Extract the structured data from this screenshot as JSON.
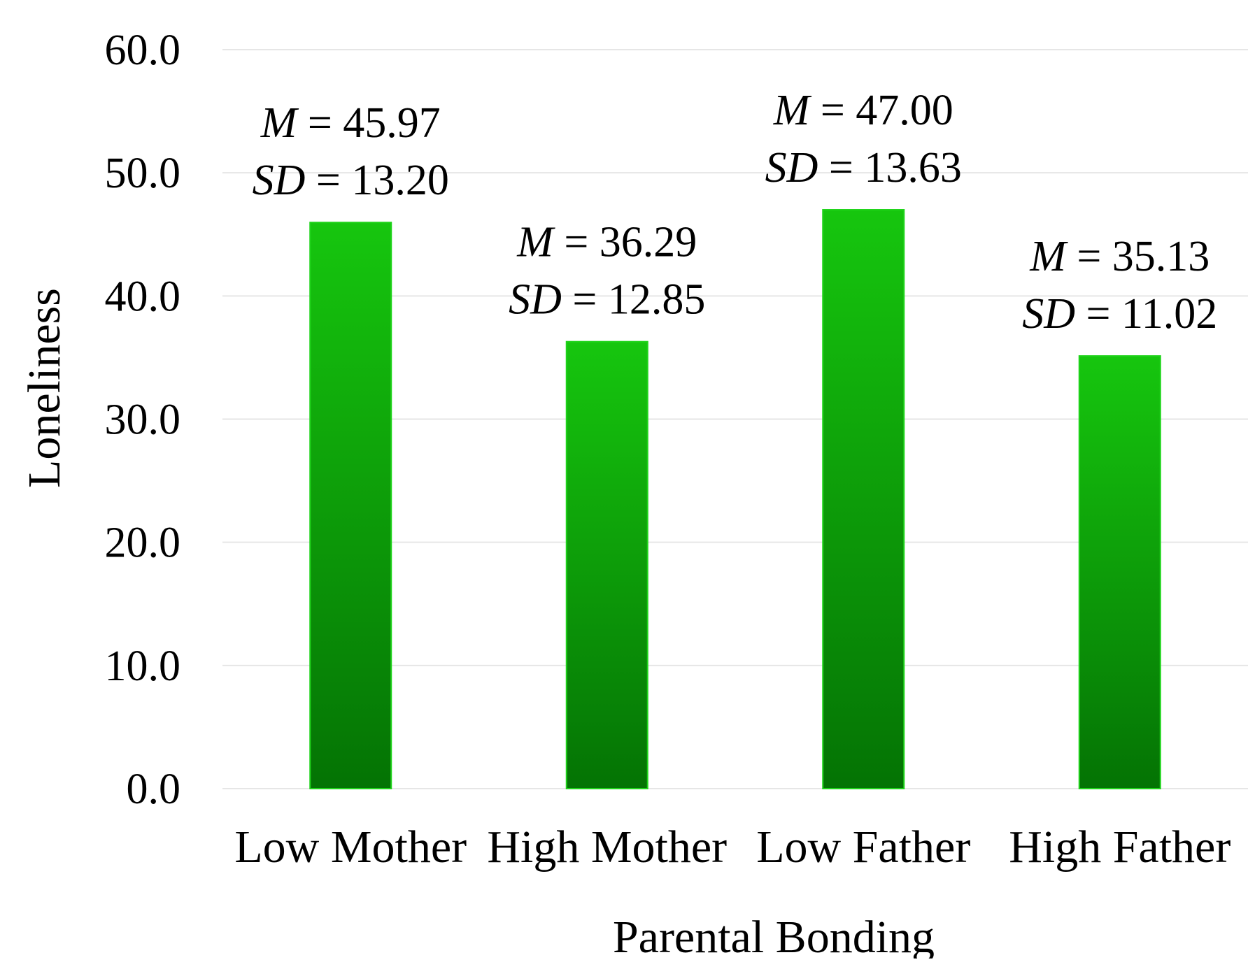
{
  "chart_data": {
    "type": "bar",
    "categories": [
      "Low Mother",
      "High Mother",
      "Low Father",
      "High Father"
    ],
    "values": [
      45.97,
      36.29,
      47.0,
      35.13
    ],
    "sd": [
      13.2,
      12.85,
      13.63,
      11.02
    ],
    "data_labels": [
      {
        "m_prefix": "M",
        "m_text": " = 45.97",
        "sd_prefix": "SD",
        "sd_text": " = 13.20"
      },
      {
        "m_prefix": "M",
        "m_text": " = 36.29",
        "sd_prefix": "SD",
        "sd_text": " = 12.85"
      },
      {
        "m_prefix": "M",
        "m_text": " = 47.00",
        "sd_prefix": "SD",
        "sd_text": " = 13.63"
      },
      {
        "m_prefix": "M",
        "m_text": " = 35.13",
        "sd_prefix": "SD",
        "sd_text": " = 11.02"
      }
    ],
    "title": "",
    "xlabel": "Parental Bonding",
    "ylabel": "Loneliness",
    "ylim": [
      0,
      60
    ],
    "yticks": [
      "0.0",
      "10.0",
      "20.0",
      "30.0",
      "40.0",
      "50.0",
      "60.0"
    ],
    "ytick_values": [
      0,
      10,
      20,
      30,
      40,
      50,
      60
    ],
    "grid": true,
    "legend": "none",
    "colors": {
      "bar_top": "#16c60e",
      "bar_bottom": "#047304",
      "bar_edge": "#1fd41a",
      "grid": "#e6e6e6"
    }
  }
}
